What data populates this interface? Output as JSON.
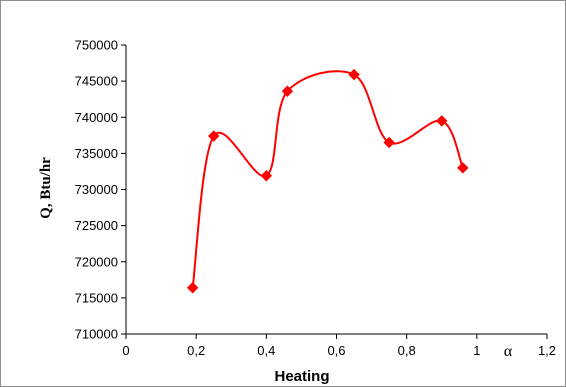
{
  "chart_data": {
    "type": "line",
    "title": "",
    "xlabel": "Heating",
    "ylabel": "Q, Btu/hr",
    "axis_symbol": "α",
    "x_ticks": [
      "0",
      "0,2",
      "0,4",
      "0,6",
      "0,8",
      "1",
      "1,2"
    ],
    "x_tick_values": [
      0,
      0.2,
      0.4,
      0.6,
      0.8,
      1.0,
      1.2
    ],
    "y_ticks": [
      "710000",
      "715000",
      "720000",
      "725000",
      "730000",
      "735000",
      "740000",
      "745000",
      "750000"
    ],
    "y_tick_values": [
      710000,
      715000,
      720000,
      725000,
      730000,
      735000,
      740000,
      745000,
      750000
    ],
    "xlim": [
      0,
      1.2
    ],
    "ylim": [
      710000,
      750000
    ],
    "grid": false,
    "marker": "diamond",
    "smooth": true,
    "color": "#ff0000",
    "series": [
      {
        "x": [
          0.19,
          0.25,
          0.4,
          0.46,
          0.65,
          0.75,
          0.9,
          0.96
        ],
        "y": [
          716400,
          737400,
          731900,
          743600,
          745900,
          736500,
          739500,
          733000
        ]
      }
    ]
  }
}
